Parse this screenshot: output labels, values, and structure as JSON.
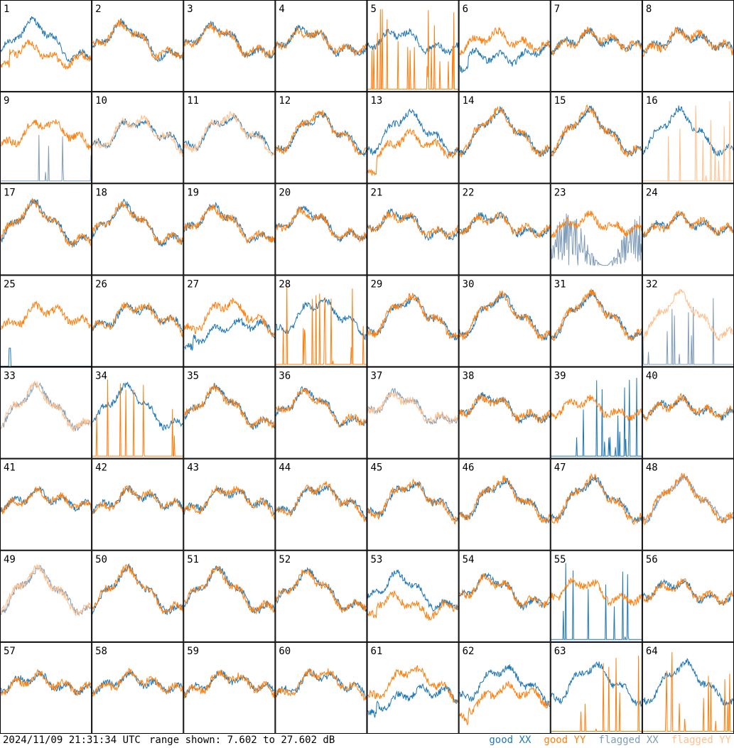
{
  "chart_data": {
    "type": "line",
    "grid": {
      "rows": 8,
      "cols": 8
    },
    "panel_labels": [
      "1",
      "2",
      "3",
      "4",
      "5",
      "6",
      "7",
      "8",
      "9",
      "10",
      "11",
      "12",
      "13",
      "14",
      "15",
      "16",
      "17",
      "18",
      "19",
      "20",
      "21",
      "22",
      "23",
      "24",
      "25",
      "26",
      "27",
      "28",
      "29",
      "30",
      "31",
      "32",
      "33",
      "34",
      "35",
      "36",
      "37",
      "38",
      "39",
      "40",
      "41",
      "42",
      "43",
      "44",
      "45",
      "46",
      "47",
      "48",
      "49",
      "50",
      "51",
      "52",
      "53",
      "54",
      "55",
      "56",
      "57",
      "58",
      "59",
      "60",
      "61",
      "62",
      "63",
      "64"
    ],
    "ylim": [
      7.602,
      27.602
    ],
    "series_styles": {
      "good_xx": "#1f77b4",
      "good_yy": "#ff7f0e",
      "flagged_xx": "#7f9cb8",
      "flagged_yy": "#ffbf8a"
    },
    "panels": [
      {
        "xx": "good",
        "yy": "good",
        "style": "lowyy"
      },
      {
        "xx": "good",
        "yy": "good",
        "style": "normal"
      },
      {
        "xx": "good",
        "yy": "good",
        "style": "normal"
      },
      {
        "xx": "good",
        "yy": "good",
        "style": "normal"
      },
      {
        "xx": "good",
        "yy": "good",
        "style": "spikyy"
      },
      {
        "xx": "good",
        "yy": "good",
        "style": "lowxx"
      },
      {
        "xx": "good",
        "yy": "good",
        "style": "normal"
      },
      {
        "xx": "good",
        "yy": "good",
        "style": "normal"
      },
      {
        "xx": "flagged",
        "yy": "good",
        "style": "spikxx"
      },
      {
        "xx": "good",
        "yy": "flagged",
        "style": "normal"
      },
      {
        "xx": "good",
        "yy": "flagged",
        "style": "normal"
      },
      {
        "xx": "good",
        "yy": "good",
        "style": "normal"
      },
      {
        "xx": "good",
        "yy": "good",
        "style": "lowyy"
      },
      {
        "xx": "good",
        "yy": "good",
        "style": "normal"
      },
      {
        "xx": "good",
        "yy": "good",
        "style": "normal"
      },
      {
        "xx": "good",
        "yy": "flagged",
        "style": "spikyy"
      },
      {
        "xx": "good",
        "yy": "good",
        "style": "normal"
      },
      {
        "xx": "good",
        "yy": "good",
        "style": "normal"
      },
      {
        "xx": "good",
        "yy": "good",
        "style": "normal"
      },
      {
        "xx": "good",
        "yy": "good",
        "style": "normal"
      },
      {
        "xx": "good",
        "yy": "good",
        "style": "normal"
      },
      {
        "xx": "good",
        "yy": "good",
        "style": "normal"
      },
      {
        "xx": "flagged",
        "yy": "good",
        "style": "noisexx"
      },
      {
        "xx": "good",
        "yy": "good",
        "style": "normal"
      },
      {
        "xx": "good",
        "yy": "good",
        "style": "spikxx1"
      },
      {
        "xx": "good",
        "yy": "good",
        "style": "normal"
      },
      {
        "xx": "good",
        "yy": "good",
        "style": "lowxx"
      },
      {
        "xx": "good",
        "yy": "good",
        "style": "spikyy"
      },
      {
        "xx": "good",
        "yy": "good",
        "style": "normal"
      },
      {
        "xx": "good",
        "yy": "good",
        "style": "normal"
      },
      {
        "xx": "good",
        "yy": "good",
        "style": "normal"
      },
      {
        "xx": "flagged",
        "yy": "flagged",
        "style": "spikxx"
      },
      {
        "xx": "flagged",
        "yy": "flagged",
        "style": "normal"
      },
      {
        "xx": "good",
        "yy": "good",
        "style": "spikyy"
      },
      {
        "xx": "good",
        "yy": "good",
        "style": "normal"
      },
      {
        "xx": "good",
        "yy": "good",
        "style": "normal"
      },
      {
        "xx": "flagged",
        "yy": "flagged",
        "style": "normal"
      },
      {
        "xx": "good",
        "yy": "good",
        "style": "normal"
      },
      {
        "xx": "good",
        "yy": "good",
        "style": "spikxx"
      },
      {
        "xx": "good",
        "yy": "good",
        "style": "normal"
      },
      {
        "xx": "good",
        "yy": "good",
        "style": "normal"
      },
      {
        "xx": "good",
        "yy": "good",
        "style": "normal"
      },
      {
        "xx": "good",
        "yy": "good",
        "style": "normal"
      },
      {
        "xx": "good",
        "yy": "good",
        "style": "normal"
      },
      {
        "xx": "good",
        "yy": "good",
        "style": "normal"
      },
      {
        "xx": "good",
        "yy": "good",
        "style": "normal"
      },
      {
        "xx": "good",
        "yy": "good",
        "style": "normal"
      },
      {
        "xx": "flagged",
        "yy": "good",
        "style": "normal"
      },
      {
        "xx": "flagged",
        "yy": "flagged",
        "style": "normal"
      },
      {
        "xx": "good",
        "yy": "good",
        "style": "normal"
      },
      {
        "xx": "good",
        "yy": "good",
        "style": "normal"
      },
      {
        "xx": "good",
        "yy": "good",
        "style": "normal"
      },
      {
        "xx": "good",
        "yy": "good",
        "style": "lowyy"
      },
      {
        "xx": "good",
        "yy": "good",
        "style": "normal"
      },
      {
        "xx": "good",
        "yy": "good",
        "style": "spikxx"
      },
      {
        "xx": "good",
        "yy": "good",
        "style": "normal"
      },
      {
        "xx": "good",
        "yy": "good",
        "style": "normal"
      },
      {
        "xx": "good",
        "yy": "good",
        "style": "normal"
      },
      {
        "xx": "good",
        "yy": "good",
        "style": "normal"
      },
      {
        "xx": "good",
        "yy": "good",
        "style": "normal"
      },
      {
        "xx": "good",
        "yy": "good",
        "style": "lowxx"
      },
      {
        "xx": "good",
        "yy": "good",
        "style": "lowyy"
      },
      {
        "xx": "good",
        "yy": "good",
        "style": "spikyy"
      },
      {
        "xx": "good",
        "yy": "good",
        "style": "spikyy"
      }
    ],
    "legend": {
      "placement": "bottom-right",
      "entries": [
        {
          "label": "good XX",
          "color": "#1f77b4"
        },
        {
          "label": "good YY",
          "color": "#ff7f0e"
        },
        {
          "label": "flagged XX",
          "color": "#7f9cb8"
        },
        {
          "label": "flagged YY",
          "color": "#ffbf8a"
        }
      ]
    }
  },
  "footer": {
    "timestamp": "2024/11/09 21:31:34 UTC",
    "range_text": "range shown: 7.602 to 27.602 dB"
  }
}
